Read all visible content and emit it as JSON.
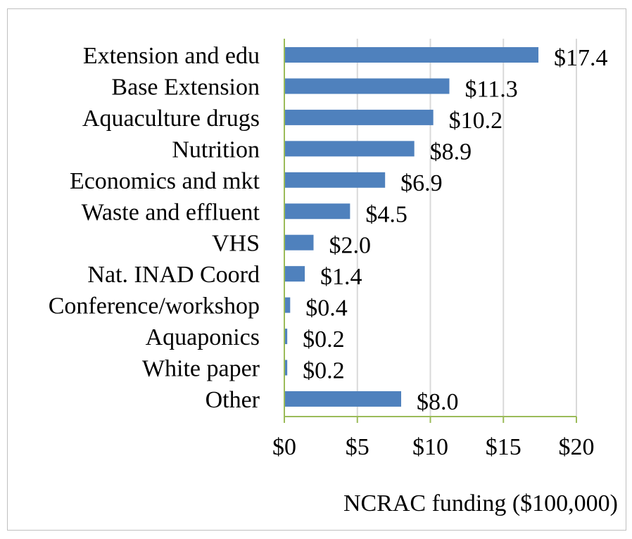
{
  "chart_data": {
    "type": "bar",
    "orientation": "horizontal",
    "categories": [
      "Extension and edu",
      "Base Extension",
      "Aquaculture drugs",
      "Nutrition",
      "Economics and mkt",
      "Waste and effluent",
      "VHS",
      "Nat. INAD Coord",
      "Conference/workshop",
      "Aquaponics",
      "White paper",
      "Other"
    ],
    "values": [
      17.4,
      11.3,
      10.2,
      8.9,
      6.9,
      4.5,
      2.0,
      1.4,
      0.4,
      0.2,
      0.2,
      8.0
    ],
    "data_labels": [
      "$17.4",
      "$11.3",
      "$10.2",
      "$8.9",
      "$6.9",
      "$4.5",
      "$2.0",
      "$1.4",
      "$0.4",
      "$0.2",
      "$0.2",
      "$8.0"
    ],
    "xticks": [
      0,
      5,
      10,
      15,
      20
    ],
    "xtick_labels": [
      "$0",
      "$5",
      "$10",
      "$15",
      "$20"
    ],
    "xlim": [
      0,
      20
    ],
    "xlabel": "NCRAC funding ($100,000)",
    "title": "",
    "grid": "vertical",
    "legend": "none",
    "colors": {
      "bar": "#4f81bd",
      "gridline": "#d9d9d9",
      "axis": "#9bbb59",
      "frame": "#bfbfbf"
    }
  }
}
